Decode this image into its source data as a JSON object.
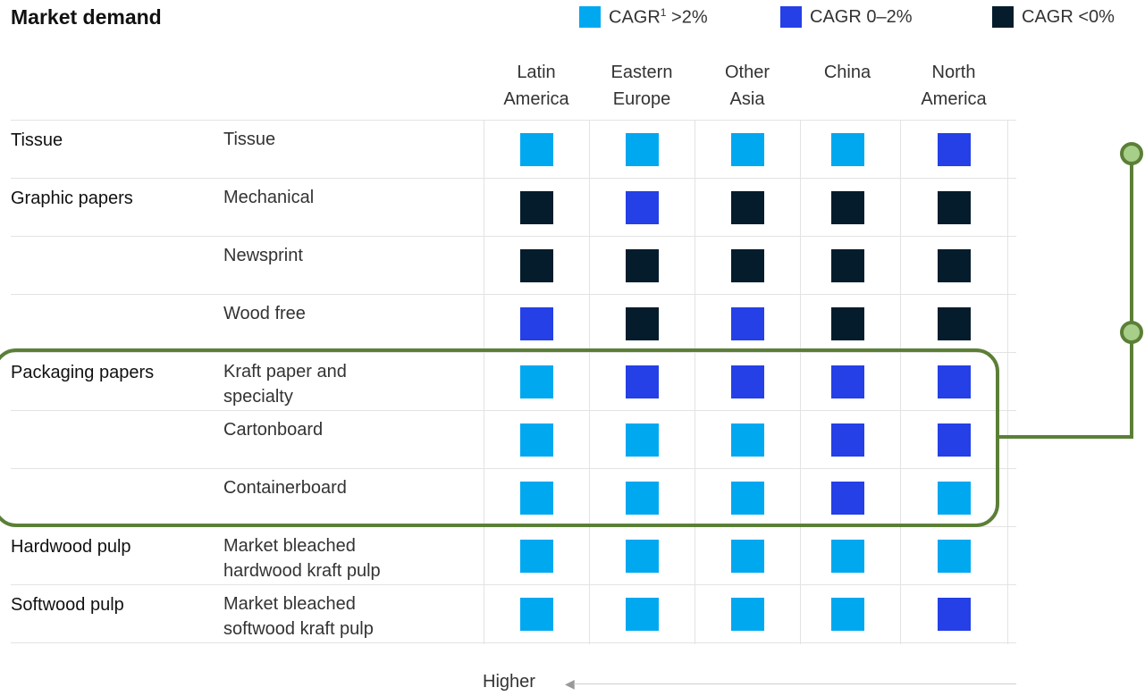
{
  "chart_data": {
    "type": "table",
    "title": "Market demand",
    "legend": [
      {
        "key": "gt2",
        "label": "CAGR",
        "sup": "1",
        "suffix": " >2%",
        "color": "#00a8f0"
      },
      {
        "key": "0to2",
        "label": "CAGR 0–2%",
        "sup": "",
        "suffix": "",
        "color": "#2440e6"
      },
      {
        "key": "lt0",
        "label": "CAGR <0%",
        "sup": "",
        "suffix": "",
        "color": "#051c2c"
      }
    ],
    "columns": [
      {
        "line1": "Latin",
        "line2": "America"
      },
      {
        "line1": "Eastern",
        "line2": "Europe"
      },
      {
        "line1": "Other",
        "line2": "Asia"
      },
      {
        "line1": "China",
        "line2": ""
      },
      {
        "line1": "North",
        "line2": "America"
      }
    ],
    "rows": [
      {
        "group": "Tissue",
        "product": [
          "Tissue"
        ],
        "values": [
          "gt2",
          "gt2",
          "gt2",
          "gt2",
          "0to2"
        ]
      },
      {
        "group": "Graphic papers",
        "product": [
          "Mechanical"
        ],
        "values": [
          "lt0",
          "0to2",
          "lt0",
          "lt0",
          "lt0"
        ]
      },
      {
        "group": "",
        "product": [
          "Newsprint"
        ],
        "values": [
          "lt0",
          "lt0",
          "lt0",
          "lt0",
          "lt0"
        ]
      },
      {
        "group": "",
        "product": [
          "Wood free"
        ],
        "values": [
          "0to2",
          "lt0",
          "0to2",
          "lt0",
          "lt0"
        ]
      },
      {
        "group": "Packaging papers",
        "product": [
          "Kraft paper and",
          "specialty"
        ],
        "values": [
          "gt2",
          "0to2",
          "0to2",
          "0to2",
          "0to2"
        ]
      },
      {
        "group": "",
        "product": [
          "Cartonboard"
        ],
        "values": [
          "gt2",
          "gt2",
          "gt2",
          "0to2",
          "0to2"
        ]
      },
      {
        "group": "",
        "product": [
          "Containerboard"
        ],
        "values": [
          "gt2",
          "gt2",
          "gt2",
          "0to2",
          "gt2"
        ]
      },
      {
        "group": "Hardwood pulp",
        "product": [
          "Market bleached",
          "hardwood kraft pulp"
        ],
        "values": [
          "gt2",
          "gt2",
          "gt2",
          "gt2",
          "gt2"
        ]
      },
      {
        "group": "Softwood pulp",
        "product": [
          "Market bleached",
          "softwood kraft pulp"
        ],
        "values": [
          "gt2",
          "gt2",
          "gt2",
          "gt2",
          "0to2"
        ]
      }
    ],
    "highlighted_group": "Packaging papers",
    "footer": "Higher"
  }
}
